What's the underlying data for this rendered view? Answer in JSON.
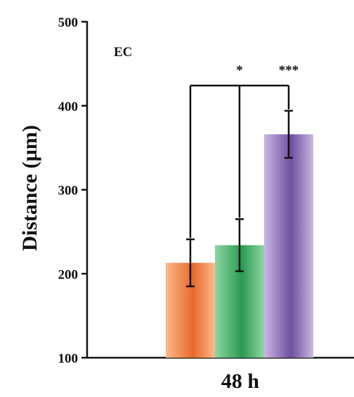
{
  "chart_data": {
    "type": "bar",
    "panel_label": "EC",
    "ylabel": "Distance (µm)",
    "xlabel": "",
    "ylim": [
      100,
      500
    ],
    "yticks": [
      100,
      200,
      300,
      400,
      500
    ],
    "category": "48 h",
    "series": [
      {
        "value": 213,
        "error": 28,
        "color_light": "#fbb98c",
        "color_dark": "#e8692a"
      },
      {
        "value": 234,
        "error": 31,
        "color_light": "#8fd6a4",
        "color_dark": "#2a9a52"
      },
      {
        "value": 366,
        "error": 28,
        "color_light": "#cab7e2",
        "color_dark": "#6f4f9f"
      }
    ],
    "significance": [
      {
        "from": 0,
        "to": 1,
        "label": "*"
      },
      {
        "from": 0,
        "to": 2,
        "label": "***"
      }
    ]
  }
}
